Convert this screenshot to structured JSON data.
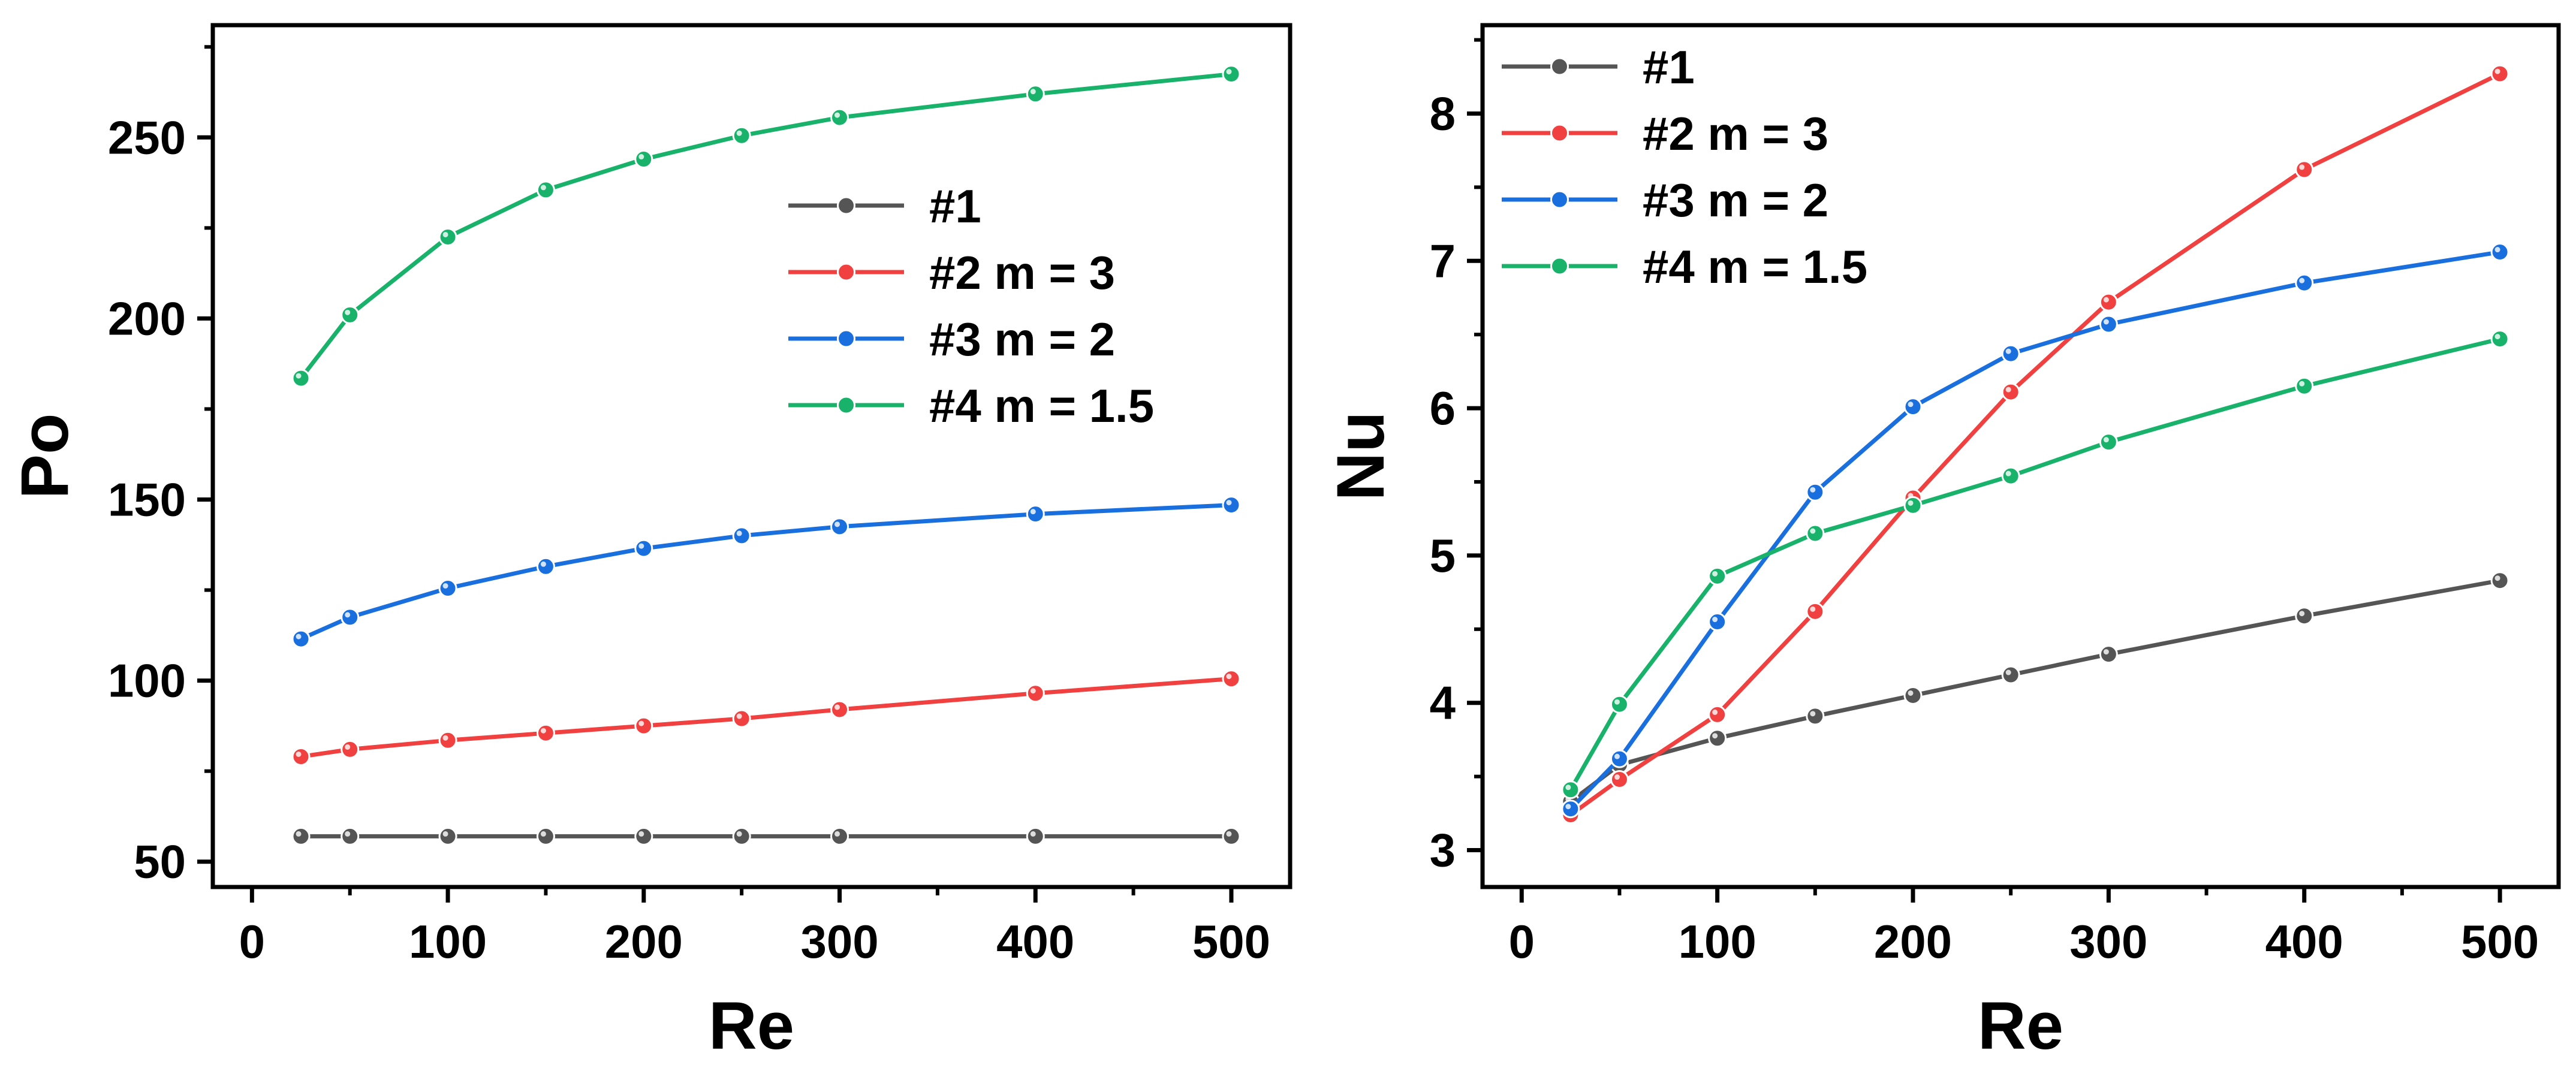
{
  "chart_data": [
    {
      "type": "line",
      "title": "",
      "xlabel": "Re",
      "ylabel": "Po",
      "xlim": [
        -20,
        530
      ],
      "ylim": [
        43,
        281
      ],
      "xticks": [
        0,
        100,
        200,
        300,
        400,
        500
      ],
      "yticks": [
        50,
        100,
        150,
        200,
        250
      ],
      "legend_position": "center-right",
      "x": [
        25,
        50,
        100,
        150,
        200,
        250,
        300,
        400,
        500
      ],
      "series": [
        {
          "name": "#1",
          "color": "#555555",
          "values": [
            57,
            57,
            57,
            57,
            57,
            57,
            57,
            57,
            57
          ]
        },
        {
          "name": "#2 m = 3",
          "color": "#f04040",
          "values": [
            79,
            81,
            83.5,
            85.5,
            87.5,
            89.5,
            92,
            96.5,
            100.5
          ]
        },
        {
          "name": "#3 m = 2",
          "color": "#1a6fdf",
          "values": [
            111.5,
            117.5,
            125.5,
            131.5,
            136.5,
            140,
            142.5,
            146,
            148.5
          ]
        },
        {
          "name": "#4 m = 1.5",
          "color": "#18b26a",
          "values": [
            183.5,
            201,
            222.5,
            235.5,
            244,
            250.5,
            255.5,
            262,
            267.5
          ]
        }
      ]
    },
    {
      "type": "line",
      "title": "",
      "xlabel": "Re",
      "ylabel": "Nu",
      "xlim": [
        -20,
        530
      ],
      "ylim": [
        2.75,
        8.6
      ],
      "xticks": [
        0,
        100,
        200,
        300,
        400,
        500
      ],
      "yticks": [
        3,
        4,
        5,
        6,
        7,
        8
      ],
      "legend_position": "top-left",
      "x": [
        25,
        50,
        100,
        150,
        200,
        250,
        300,
        400,
        500
      ],
      "series": [
        {
          "name": "#1",
          "color": "#555555",
          "values": [
            3.33,
            3.58,
            3.76,
            3.91,
            4.05,
            4.19,
            4.33,
            4.59,
            4.83
          ]
        },
        {
          "name": "#2 m = 3",
          "color": "#f04040",
          "values": [
            3.24,
            3.48,
            3.92,
            4.62,
            5.39,
            6.11,
            6.72,
            7.62,
            8.27
          ]
        },
        {
          "name": "#3 m = 2",
          "color": "#1a6fdf",
          "values": [
            3.28,
            3.62,
            4.55,
            5.43,
            6.01,
            6.37,
            6.57,
            6.85,
            7.06
          ]
        },
        {
          "name": "#4 m = 1.5",
          "color": "#18b26a",
          "values": [
            3.41,
            3.99,
            4.86,
            5.15,
            5.34,
            5.54,
            5.77,
            6.15,
            6.47
          ]
        }
      ]
    }
  ]
}
